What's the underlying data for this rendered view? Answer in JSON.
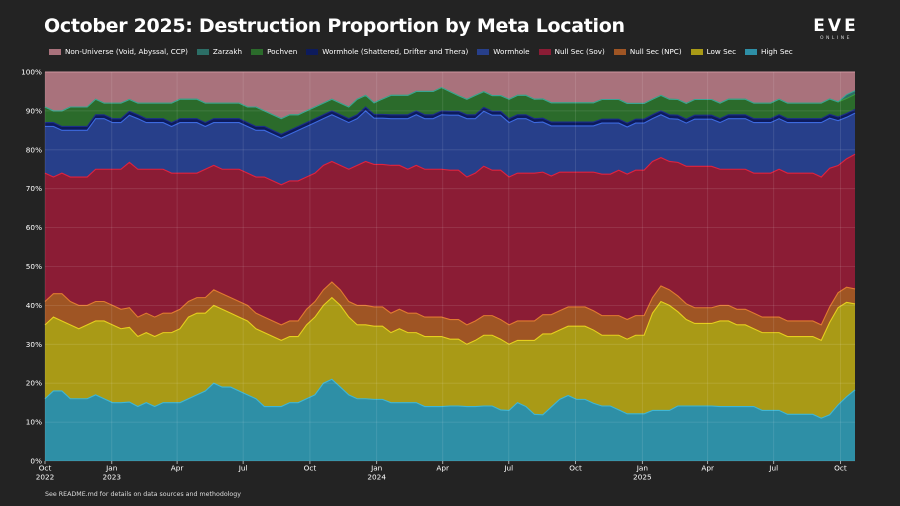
{
  "chart_data": {
    "type": "area",
    "title": "October 2025: Destruction Proportion by Meta Location",
    "stacked": true,
    "normalized_percent": true,
    "x_start": "2022-10",
    "x_end": "2025-10",
    "x_step": "half-month",
    "x_ticks": [
      {
        "label": "Oct",
        "year": "2022",
        "date": "2022-10-01"
      },
      {
        "label": "Jan",
        "year": "2023",
        "date": "2023-01-01"
      },
      {
        "label": "Apr",
        "year": "",
        "date": "2023-04-01"
      },
      {
        "label": "Jul",
        "year": "",
        "date": "2023-07-01"
      },
      {
        "label": "Oct",
        "year": "",
        "date": "2023-10-01"
      },
      {
        "label": "Jan",
        "year": "2024",
        "date": "2024-01-01"
      },
      {
        "label": "Apr",
        "year": "",
        "date": "2024-04-01"
      },
      {
        "label": "Jul",
        "year": "",
        "date": "2024-07-01"
      },
      {
        "label": "Oct",
        "year": "",
        "date": "2024-10-01"
      },
      {
        "label": "Jan",
        "year": "2025",
        "date": "2025-01-01"
      },
      {
        "label": "Apr",
        "year": "",
        "date": "2025-04-01"
      },
      {
        "label": "Jul",
        "year": "",
        "date": "2025-07-01"
      },
      {
        "label": "Oct",
        "year": "",
        "date": "2025-10-01"
      }
    ],
    "y_ticks": [
      "0%",
      "10%",
      "20%",
      "30%",
      "40%",
      "50%",
      "60%",
      "70%",
      "80%",
      "90%",
      "100%"
    ],
    "ylim": [
      0,
      100
    ],
    "grid": true,
    "legend_position": "top-left",
    "series": [
      {
        "name": "High Sec",
        "color": "#2e8fa6",
        "line": "#3fb6d4",
        "values": [
          16,
          18,
          18,
          16,
          16,
          16,
          17,
          16,
          15,
          15,
          15,
          14,
          15,
          14,
          15,
          15,
          15,
          16,
          17,
          18,
          20,
          19,
          19,
          18,
          17,
          16,
          14,
          14,
          14,
          15,
          15,
          16,
          17,
          20,
          21,
          19,
          17,
          16,
          16,
          16,
          16,
          15,
          15,
          15,
          15,
          14,
          14,
          14,
          14,
          14,
          14,
          14,
          14,
          14,
          13,
          13,
          15,
          14,
          12,
          12,
          14,
          16,
          17,
          16,
          16,
          15,
          14,
          14,
          13,
          12,
          12,
          12,
          13,
          13,
          13,
          14,
          14,
          14,
          14,
          14,
          14,
          14,
          14,
          14,
          14,
          13,
          13,
          13,
          12,
          12,
          12,
          12,
          11,
          12,
          15,
          17,
          19
        ]
      },
      {
        "name": "Low Sec",
        "color": "#a99a16",
        "line": "#e6cf1e",
        "values": [
          19,
          19,
          18,
          19,
          18,
          19,
          19,
          20,
          20,
          19,
          19,
          18,
          18,
          18,
          18,
          18,
          19,
          21,
          21,
          20,
          20,
          20,
          19,
          19,
          19,
          18,
          19,
          18,
          17,
          17,
          17,
          19,
          20,
          20,
          21,
          21,
          20,
          19,
          19,
          19,
          19,
          18,
          19,
          18,
          18,
          18,
          18,
          18,
          17,
          17,
          16,
          17,
          18,
          18,
          18,
          17,
          16,
          17,
          19,
          21,
          19,
          18,
          18,
          19,
          19,
          19,
          18,
          18,
          19,
          19,
          20,
          20,
          25,
          28,
          27,
          24,
          22,
          21,
          21,
          21,
          22,
          22,
          21,
          21,
          20,
          20,
          20,
          20,
          20,
          20,
          20,
          20,
          20,
          24,
          26,
          25,
          23
        ]
      },
      {
        "name": "Null Sec (NPC)",
        "color": "#9f5524",
        "line": "#e07a30",
        "values": [
          6,
          6,
          7,
          6,
          6,
          5,
          5,
          5,
          5,
          5,
          5,
          5,
          5,
          5,
          5,
          5,
          5,
          4,
          4,
          4,
          4,
          4,
          4,
          4,
          4,
          4,
          4,
          4,
          4,
          4,
          4,
          4,
          4,
          4,
          4,
          4,
          4,
          5,
          5,
          5,
          5,
          5,
          5,
          5,
          5,
          5,
          5,
          5,
          5,
          5,
          5,
          5,
          5,
          5,
          5,
          5,
          5,
          5,
          5,
          5,
          5,
          5,
          5,
          5,
          5,
          5,
          5,
          5,
          5,
          5,
          5,
          5,
          4,
          4,
          4,
          4,
          4,
          4,
          4,
          4,
          4,
          4,
          4,
          4,
          4,
          4,
          4,
          4,
          4,
          4,
          4,
          4,
          4,
          4,
          4,
          4,
          4
        ]
      },
      {
        "name": "Null Sec (Sov)",
        "color": "#8b1c35",
        "line": "#e0223e",
        "values": [
          33,
          30,
          31,
          32,
          33,
          33,
          34,
          34,
          35,
          36,
          37,
          38,
          37,
          38,
          37,
          36,
          35,
          33,
          32,
          33,
          32,
          32,
          33,
          34,
          34,
          35,
          36,
          36,
          36,
          36,
          36,
          34,
          33,
          32,
          31,
          32,
          34,
          36,
          37,
          37,
          37,
          38,
          37,
          37,
          38,
          38,
          38,
          38,
          38,
          38,
          38,
          38,
          38,
          37,
          38,
          38,
          38,
          38,
          38,
          37,
          36,
          36,
          35,
          35,
          35,
          36,
          36,
          36,
          37,
          37,
          37,
          37,
          35,
          33,
          33,
          34,
          35,
          36,
          36,
          36,
          35,
          35,
          36,
          36,
          36,
          37,
          37,
          38,
          38,
          38,
          38,
          38,
          38,
          36,
          34,
          34,
          36
        ]
      },
      {
        "name": "Wormhole",
        "color": "#273f8a",
        "line": "#3d6ae0",
        "values": [
          12,
          13,
          11,
          12,
          12,
          12,
          13,
          13,
          12,
          12,
          12,
          13,
          12,
          12,
          12,
          12,
          13,
          13,
          13,
          11,
          11,
          12,
          12,
          12,
          12,
          12,
          12,
          12,
          12,
          12,
          13,
          13,
          13,
          12,
          12,
          12,
          12,
          12,
          13,
          12,
          12,
          12,
          12,
          13,
          13,
          13,
          13,
          14,
          14,
          14,
          15,
          14,
          14,
          14,
          14,
          14,
          14,
          14,
          13,
          13,
          13,
          12,
          12,
          12,
          12,
          12,
          13,
          13,
          12,
          12,
          12,
          12,
          11,
          11,
          11,
          11,
          11,
          12,
          12,
          12,
          12,
          13,
          13,
          13,
          13,
          13,
          13,
          13,
          13,
          13,
          13,
          13,
          14,
          13,
          12,
          11,
          11
        ]
      },
      {
        "name": "Wormhole (Shattered, Drifter and Thera)",
        "color": "#0d1b5c",
        "line": "#1b2c8a",
        "values": [
          1,
          1,
          1,
          1,
          1,
          1,
          1,
          1,
          1,
          1,
          1,
          1,
          1,
          1,
          1,
          1,
          1,
          1,
          1,
          1,
          1,
          1,
          1,
          1,
          1,
          1,
          1,
          1,
          1,
          1,
          1,
          1,
          1,
          1,
          1,
          1,
          1,
          1,
          1,
          1,
          1,
          1,
          1,
          1,
          1,
          1,
          1,
          1,
          1,
          1,
          1,
          1,
          1,
          1,
          1,
          1,
          1,
          1,
          1,
          1,
          1,
          1,
          1,
          1,
          1,
          1,
          1,
          1,
          1,
          1,
          1,
          1,
          1,
          1,
          1,
          1,
          1,
          1,
          1,
          1,
          1,
          1,
          1,
          1,
          1,
          1,
          1,
          1,
          1,
          1,
          1,
          1,
          1,
          1,
          1,
          1,
          1
        ]
      },
      {
        "name": "Pochven",
        "color": "#2b6b2b",
        "line": "#3c9a3c",
        "values": [
          4,
          3,
          4,
          5,
          5,
          5,
          4,
          3,
          4,
          4,
          3,
          3,
          4,
          4,
          4,
          5,
          5,
          5,
          5,
          5,
          4,
          4,
          4,
          4,
          4,
          5,
          4,
          4,
          4,
          4,
          3,
          3,
          3,
          3,
          3,
          3,
          3,
          4,
          3,
          3,
          4,
          5,
          5,
          5,
          5,
          6,
          6,
          6,
          5,
          4,
          4,
          5,
          4,
          4,
          4,
          5,
          5,
          5,
          5,
          5,
          5,
          5,
          5,
          5,
          5,
          5,
          5,
          5,
          5,
          5,
          4,
          4,
          4,
          4,
          4,
          4,
          4,
          4,
          4,
          4,
          4,
          4,
          4,
          4,
          4,
          4,
          4,
          4,
          4,
          4,
          4,
          4,
          4,
          4,
          4,
          4,
          4
        ]
      },
      {
        "name": "Zarzakh",
        "color": "#2c6e66",
        "line": "#3aa494",
        "values": [
          0,
          0,
          0,
          0,
          0,
          0,
          0,
          0,
          0,
          0,
          0,
          0,
          0,
          0,
          0,
          0,
          0,
          0,
          0,
          0,
          0,
          0,
          0,
          0,
          0,
          0,
          0,
          0,
          0,
          0,
          0,
          0,
          0,
          0,
          0,
          0,
          0,
          0,
          0,
          0,
          0,
          0,
          0,
          0,
          0,
          0,
          0,
          0,
          0,
          0,
          0,
          0,
          0,
          0,
          0,
          0,
          0,
          0,
          0,
          0,
          0,
          0,
          0,
          0,
          0,
          0,
          0,
          0,
          0,
          0,
          0,
          0,
          0,
          0,
          0,
          0,
          0,
          0,
          0,
          0,
          0,
          0,
          0,
          0,
          0,
          0,
          0,
          0,
          0,
          0,
          0,
          0,
          0,
          0,
          0,
          1,
          1
        ]
      },
      {
        "name": "Non-Universe (Void, Abyssal, CCP)",
        "color": "#a9727c",
        "line": "#c98b96",
        "values": [
          9,
          10,
          10,
          9,
          9,
          9,
          7,
          8,
          8,
          8,
          7,
          8,
          8,
          8,
          8,
          8,
          7,
          7,
          7,
          8,
          8,
          8,
          8,
          8,
          9,
          9,
          10,
          11,
          12,
          11,
          11,
          10,
          9,
          8,
          7,
          8,
          9,
          7,
          6,
          8,
          7,
          6,
          6,
          6,
          5,
          5,
          5,
          4,
          5,
          6,
          7,
          6,
          5,
          6,
          6,
          7,
          6,
          6,
          7,
          7,
          8,
          8,
          8,
          8,
          8,
          8,
          7,
          7,
          7,
          8,
          8,
          8,
          7,
          6,
          7,
          7,
          8,
          7,
          7,
          7,
          8,
          7,
          7,
          7,
          8,
          8,
          8,
          7,
          8,
          8,
          8,
          8,
          8,
          7,
          8,
          6,
          5
        ]
      }
    ]
  },
  "logo": {
    "mark": "EVE",
    "sub": "ONLINE"
  },
  "footnote": "See README.md for details on data sources and methodology"
}
